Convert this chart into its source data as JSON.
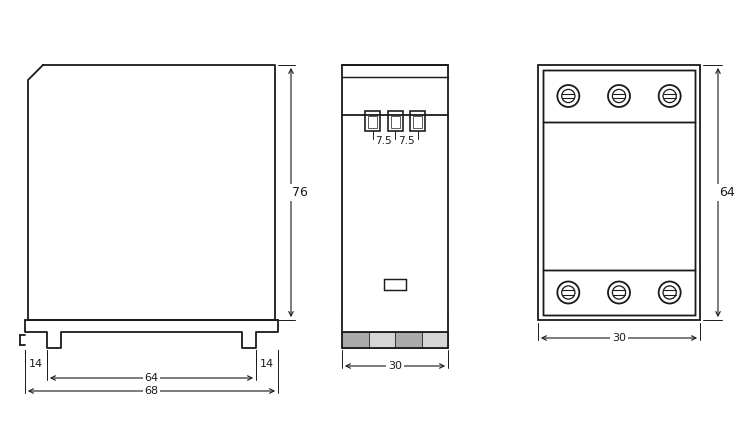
{
  "bg_color": "#ffffff",
  "line_color": "#1a1a1a",
  "fig_width": 7.5,
  "fig_height": 4.38,
  "dpi": 100
}
